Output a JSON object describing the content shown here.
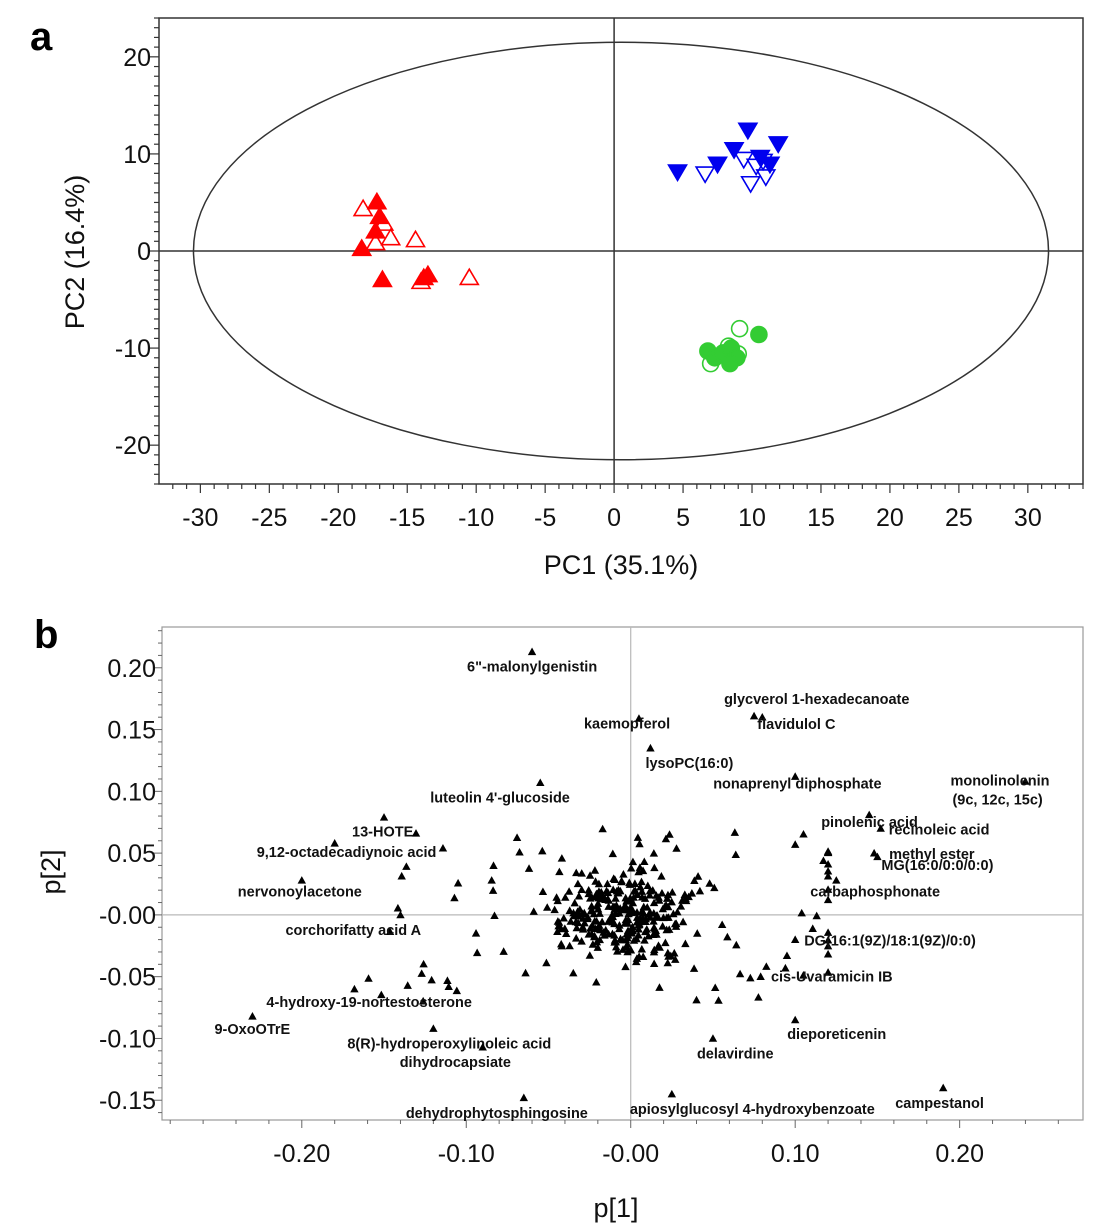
{
  "panel_a_label": "a",
  "panel_b_label": "b",
  "colors": {
    "red": "#ff0000",
    "blue": "#0000ee",
    "green": "#33cc33",
    "black": "#000000"
  },
  "chart_data": [
    {
      "type": "scatter",
      "panel": "a",
      "xlabel": "PC1 (35.1%)",
      "ylabel": "PC2 (16.4%)",
      "xlim": [
        -33,
        34
      ],
      "ylim": [
        -24,
        24
      ],
      "xticks": [
        -30,
        -25,
        -20,
        -15,
        -10,
        -5,
        0,
        5,
        10,
        15,
        20,
        25,
        30
      ],
      "yticks": [
        20,
        10,
        0,
        -10,
        -20
      ],
      "confidence_ellipse": {
        "center": [
          0.5,
          0
        ],
        "semi_axes": [
          31,
          21.5
        ]
      },
      "grid": false,
      "series": [
        {
          "marker": "triangle-up-filled",
          "color": "#ff0000",
          "x": [
            -17.2,
            -17.0,
            -17.3,
            -18.3,
            -16.8,
            -13.5,
            -13.8
          ],
          "y": [
            5.0,
            3.5,
            2.0,
            0.2,
            -3.0,
            -2.5,
            -2.8
          ]
        },
        {
          "marker": "triangle-up-open",
          "color": "#ff0000",
          "x": [
            -18.2,
            -16.7,
            -16.2,
            -14.4,
            -14.0,
            -10.5,
            -17.3
          ],
          "y": [
            4.3,
            2.8,
            1.3,
            1.1,
            -3.2,
            -2.8,
            0.8
          ]
        },
        {
          "marker": "triangle-down-filled",
          "color": "#0000ee",
          "x": [
            4.6,
            7.5,
            8.7,
            9.7,
            10.6,
            11.9,
            11.3
          ],
          "y": [
            8.2,
            9.0,
            10.5,
            12.5,
            9.7,
            11.1,
            9.0
          ]
        },
        {
          "marker": "triangle-down-open",
          "color": "#0000ee",
          "x": [
            6.6,
            9.4,
            10.3,
            10.8,
            11.0,
            9.9
          ],
          "y": [
            8.0,
            9.5,
            8.8,
            9.3,
            7.7,
            7.0
          ]
        },
        {
          "marker": "circle-filled",
          "color": "#33cc33",
          "x": [
            6.8,
            7.3,
            7.9,
            8.5,
            8.9,
            8.4,
            10.5
          ],
          "y": [
            -10.3,
            -11.0,
            -10.5,
            -10.0,
            -11.0,
            -11.6,
            -8.6
          ]
        },
        {
          "marker": "circle-open",
          "color": "#33cc33",
          "x": [
            7.0,
            8.3,
            9.1,
            9.0
          ],
          "y": [
            -11.6,
            -9.8,
            -8.0,
            -10.6
          ]
        }
      ]
    },
    {
      "type": "scatter",
      "panel": "b",
      "xlabel": "p[1]",
      "ylabel": "p[2]",
      "xlim": [
        -0.285,
        0.275
      ],
      "ylim": [
        -0.166,
        0.233
      ],
      "xticks": [
        -0.2,
        -0.1,
        0.0,
        0.1,
        0.2
      ],
      "xticklabels": [
        "-0.20",
        "-0.10",
        "-0.00",
        "0.10",
        "0.20"
      ],
      "yticks": [
        0.2,
        0.15,
        0.1,
        0.05,
        0.0,
        -0.05,
        -0.1,
        -0.15
      ],
      "yticklabels": [
        "0.20",
        "0.15",
        "0.10",
        "0.05",
        "-0.00",
        "-0.05",
        "-0.10",
        "-0.15"
      ],
      "grid": false,
      "labeled_points": [
        {
          "label": "6\"-malonylgenistin",
          "x": -0.06,
          "y": 0.213
        },
        {
          "label": "glycverol 1-hexadecanoate",
          "x": 0.075,
          "y": 0.161
        },
        {
          "label": "flavidulol C",
          "x": 0.08,
          "y": 0.16
        },
        {
          "label": "kaemopferol",
          "x": 0.005,
          "y": 0.159
        },
        {
          "label": "lysoPC(16:0)",
          "x": 0.012,
          "y": 0.135
        },
        {
          "label": "luteolin 4'-glucoside",
          "x": -0.055,
          "y": 0.107
        },
        {
          "label": "nonaprenyl diphosphate",
          "x": 0.1,
          "y": 0.112
        },
        {
          "label": "monolinolenin (9c, 12c, 15c)",
          "x": 0.24,
          "y": 0.108
        },
        {
          "label": "pinolenic acid",
          "x": 0.145,
          "y": 0.081
        },
        {
          "label": "13-HOTE",
          "x": -0.15,
          "y": 0.079
        },
        {
          "label": "recinoleic acid",
          "x": 0.152,
          "y": 0.07
        },
        {
          "label": "methyl ester",
          "x": 0.148,
          "y": 0.05
        },
        {
          "label": "9,12-octadecadiynoic acid",
          "x": -0.18,
          "y": 0.058
        },
        {
          "label": "MG(16:0/0:0/0:0)",
          "x": 0.15,
          "y": 0.047
        },
        {
          "label": "nervonoylacetone",
          "x": -0.2,
          "y": 0.028
        },
        {
          "label": "carbaphosphonate",
          "x": 0.125,
          "y": 0.028
        },
        {
          "label": "corchorifatty acid A",
          "x": -0.14,
          "y": 0.0
        },
        {
          "label": "DG(16:1(9Z)/18:1(9Z)/0:0)",
          "x": 0.1,
          "y": -0.02
        },
        {
          "label": "cis-Uvaramicin IB",
          "x": 0.095,
          "y": -0.033
        },
        {
          "label": "4-hydroxy-19-nortestosterone",
          "x": -0.168,
          "y": -0.06
        },
        {
          "label": "9-OxoOTrE",
          "x": -0.23,
          "y": -0.082
        },
        {
          "label": "8(R)-hydroperoxylinoleic acid",
          "x": -0.12,
          "y": -0.092
        },
        {
          "label": "dieporeticenin",
          "x": 0.1,
          "y": -0.085
        },
        {
          "label": "dihydrocapsiate",
          "x": -0.09,
          "y": -0.107
        },
        {
          "label": "delavirdine",
          "x": 0.05,
          "y": -0.1
        },
        {
          "label": "campestanol",
          "x": 0.19,
          "y": -0.14
        },
        {
          "label": "dehydrophytosphingosine",
          "x": -0.065,
          "y": -0.148
        },
        {
          "label": "apiosylglucosyl 4-hydroxybenzoate",
          "x": 0.025,
          "y": -0.145
        }
      ],
      "other_points_count": 370
    }
  ]
}
